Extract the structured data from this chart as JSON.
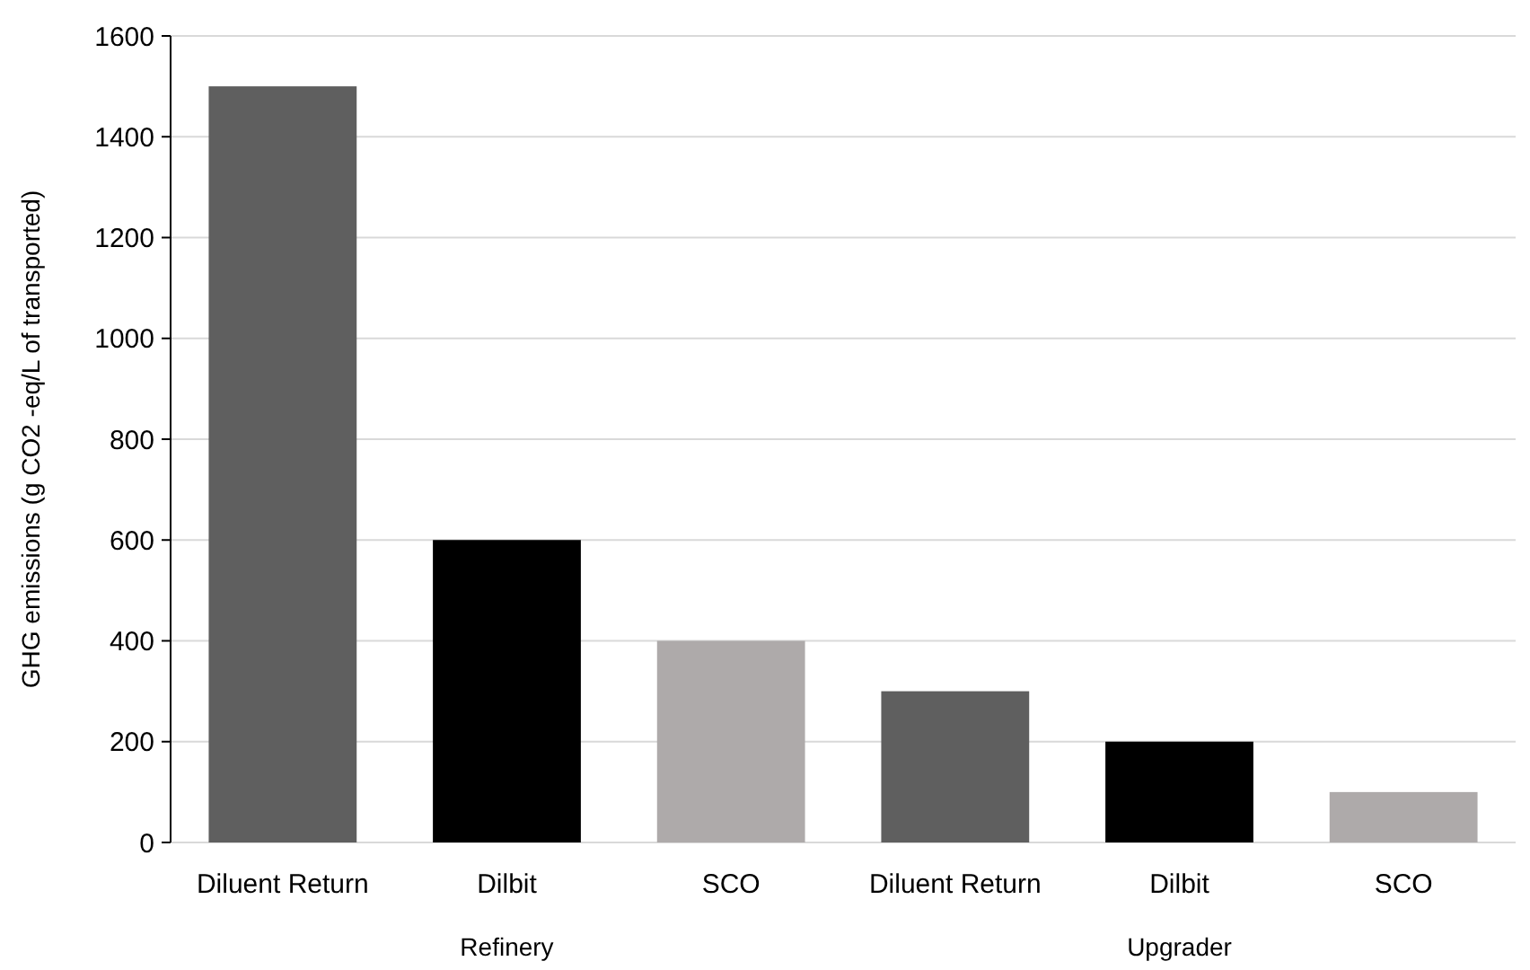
{
  "chart_data": {
    "type": "bar",
    "ylabel": "GHG emissions (g CO2 -eq/L of transported)",
    "categories": [
      "Diluent Return",
      "Dilbit",
      "SCO",
      "Diluent Return",
      "Dilbit",
      "SCO"
    ],
    "values": [
      1500,
      600,
      400,
      300,
      200,
      100
    ],
    "colors": [
      "#5f5f5f",
      "#000000",
      "#aeaaaa",
      "#5f5f5f",
      "#000000",
      "#aeaaaa"
    ],
    "ylim": [
      0,
      1600
    ],
    "yticks": [
      0,
      200,
      400,
      600,
      800,
      1000,
      1200,
      1400,
      1600
    ],
    "grid": "y",
    "annotations": [
      "Refinery",
      "Upgrader"
    ]
  }
}
